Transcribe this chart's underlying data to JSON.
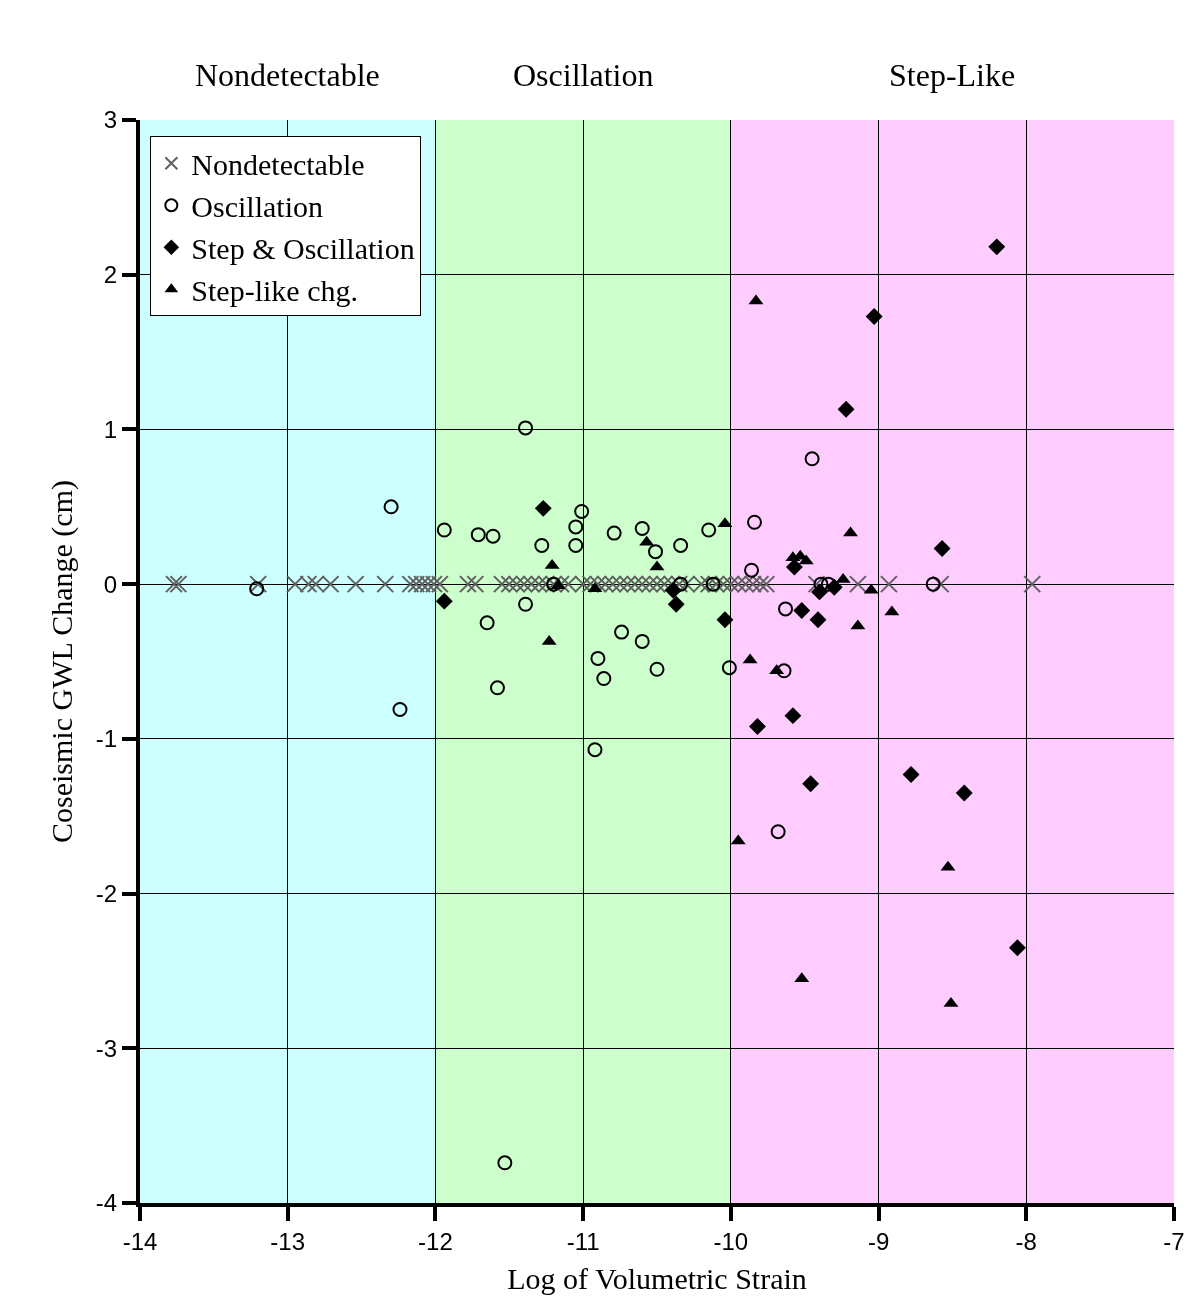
{
  "chart_data": {
    "type": "scatter",
    "xlabel": "Log of Volumetric Strain",
    "ylabel": "Coseismic GWL Change (cm)",
    "xlim": [
      -14,
      -7
    ],
    "xticks": [
      -14,
      -13,
      -12,
      -11,
      -10,
      -9,
      -8,
      -7
    ],
    "ylim": [
      -4,
      3
    ],
    "yticks": [
      -4,
      -3,
      -2,
      -1,
      0,
      1,
      2,
      3
    ],
    "grid": true,
    "legend": "top left",
    "bands": [
      {
        "axis": "x",
        "from": -14,
        "to": -12,
        "label": "Nondetectable",
        "color": "#ccffff"
      },
      {
        "axis": "x",
        "from": -12,
        "to": -10,
        "label": "Oscillation",
        "color": "#ccffcc"
      },
      {
        "axis": "x",
        "from": -10,
        "to": -7,
        "label": "Step-Like",
        "color": "#ffccff"
      }
    ],
    "series": [
      {
        "name": "Nondetectable",
        "color": "#606060",
        "marker": "cross",
        "x": [
          -13.77,
          -13.74,
          -13.2,
          -12.95,
          -12.86,
          -12.81,
          -12.71,
          -12.54,
          -12.34,
          -12.17,
          -12.13,
          -12.09,
          -12.05,
          -12.01,
          -11.97,
          -11.78,
          -11.73,
          -11.55,
          -11.5,
          -11.45,
          -11.4,
          -11.35,
          -11.3,
          -11.25,
          -11.2,
          -11.15,
          -11.1,
          -11.0,
          -10.95,
          -10.9,
          -10.85,
          -10.8,
          -10.75,
          -10.7,
          -10.65,
          -10.6,
          -10.55,
          -10.5,
          -10.45,
          -10.4,
          -10.35,
          -10.3,
          -10.2,
          -10.15,
          -10.1,
          -10.05,
          -10.0,
          -9.95,
          -9.9,
          -9.85,
          -9.8,
          -9.76,
          -9.42,
          -9.14,
          -8.93,
          -8.58,
          -7.96
        ],
        "values": [
          0,
          0,
          0,
          0,
          0,
          0,
          0,
          0,
          0,
          0,
          0,
          0,
          0,
          0,
          0,
          0,
          0,
          0,
          0,
          0,
          0,
          0,
          0,
          0,
          0,
          0,
          0,
          0,
          0,
          0,
          0,
          0,
          0,
          0,
          0,
          0,
          0,
          0,
          0,
          0,
          0,
          0,
          0,
          0,
          0,
          0,
          0,
          0,
          0,
          0,
          0,
          0,
          0,
          0,
          0,
          0,
          0
        ]
      },
      {
        "name": "Oscillation",
        "color": "#000000",
        "marker": "circle",
        "x": [
          -13.21,
          -12.3,
          -12.24,
          -11.94,
          -11.71,
          -11.61,
          -11.65,
          -11.58,
          -11.53,
          -11.39,
          -11.39,
          -11.28,
          -11.2,
          -11.05,
          -11.01,
          -11.05,
          -10.92,
          -10.9,
          -10.86,
          -10.79,
          -10.74,
          -10.6,
          -10.6,
          -10.51,
          -10.5,
          -10.34,
          -10.34,
          -10.15,
          -10.12,
          -10.01,
          -9.86,
          -9.84,
          -9.63,
          -9.64,
          -9.68,
          -9.45,
          -9.39,
          -9.34,
          -8.63
        ],
        "values": [
          -0.03,
          0.5,
          -0.81,
          0.35,
          0.32,
          0.31,
          -0.25,
          -0.67,
          -3.74,
          1.01,
          -0.13,
          0.25,
          0.0,
          0.37,
          0.47,
          0.25,
          -1.07,
          -0.48,
          -0.61,
          0.33,
          -0.31,
          0.36,
          -0.37,
          0.21,
          -0.55,
          0.25,
          0,
          0.35,
          0.0,
          -0.54,
          0.09,
          0.4,
          -0.16,
          -0.56,
          -1.6,
          0.81,
          0,
          0,
          0
        ]
      },
      {
        "name": "Step & Oscillation",
        "color": "#000000",
        "marker": "diamond",
        "x": [
          -11.94,
          -11.27,
          -10.37,
          -10.39,
          -10.04,
          -9.57,
          -9.52,
          -9.41,
          -9.4,
          -9.3,
          -8.2,
          -9.03,
          -9.22,
          -8.57,
          -9.58,
          -9.82,
          -9.46,
          -8.78,
          -8.42,
          -8.06
        ],
        "values": [
          -0.11,
          0.49,
          -0.13,
          -0.04,
          -0.23,
          0.11,
          -0.17,
          -0.23,
          -0.05,
          -0.02,
          2.18,
          1.73,
          1.13,
          0.23,
          -0.85,
          -0.92,
          -1.29,
          -1.23,
          -1.35,
          -2.35
        ]
      },
      {
        "name": "Step-like chg.",
        "color": "#000000",
        "marker": "triangle",
        "x": [
          -9.83,
          -10.04,
          -10.57,
          -10.5,
          -11.21,
          -11.17,
          -10.92,
          -11.23,
          -9.87,
          -9.69,
          -9.95,
          -9.52,
          -8.53,
          -8.51,
          -8.91,
          -9.14,
          -9.05,
          -9.19,
          -9.24,
          -9.58,
          -9.53,
          -9.49
        ],
        "values": [
          1.83,
          0.39,
          0.27,
          0.11,
          0.12,
          -0.01,
          -0.03,
          -0.37,
          -0.49,
          -0.56,
          -1.66,
          -2.55,
          -1.83,
          -2.71,
          -0.18,
          -0.27,
          -0.04,
          0.33,
          0.03,
          0.17,
          0.18,
          0.15
        ]
      }
    ]
  }
}
